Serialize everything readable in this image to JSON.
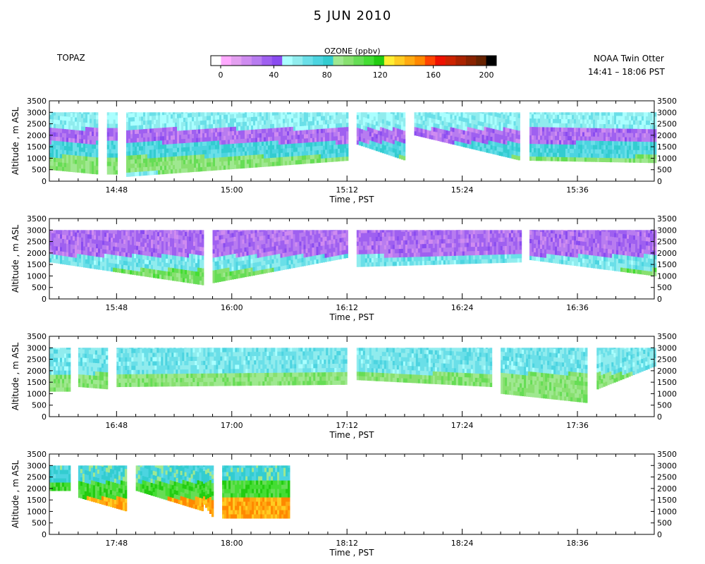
{
  "header": {
    "title": "5 JUN 2010",
    "left_label": "TOPAZ",
    "right_label_1": "NOAA Twin Otter",
    "right_label_2": "14:41 – 18:06 PST"
  },
  "colorbar": {
    "title": "OZONE (ppbv)",
    "min": 0,
    "max": 200,
    "tick_labels": [
      "0",
      "40",
      "80",
      "120",
      "160",
      "200"
    ],
    "colors": [
      "#ffffff",
      "#ffaaff",
      "#e39ff0",
      "#cf8cf0",
      "#b87cf0",
      "#9f60f0",
      "#8a4cf0",
      "#aaffff",
      "#90ecee",
      "#6adfe8",
      "#4cd4e0",
      "#33ccd0",
      "#9fe890",
      "#88e070",
      "#66dd55",
      "#44dd33",
      "#22cc11",
      "#ffee33",
      "#ffcc22",
      "#ffaa11",
      "#ff8800",
      "#ff4400",
      "#ee1100",
      "#cc2200",
      "#aa2200",
      "#882200",
      "#662200",
      "#000000"
    ]
  },
  "chart_data": [
    {
      "type": "heatmap",
      "xlabel": "Time , PST",
      "ylabel": "Altitude , m ASL",
      "xlim": [
        "14:41",
        "15:44"
      ],
      "ylim": [
        0,
        3500
      ],
      "x_ticks": [
        "14:48",
        "15:00",
        "15:12",
        "15:24",
        "15:36"
      ],
      "y_ticks": [
        "0",
        "500",
        "1000",
        "1500",
        "2000",
        "2500",
        "3000",
        "3500"
      ],
      "profile_top_m": 3000,
      "segments": [
        {
          "start": "14:41",
          "end": "14:46",
          "floor_m": [
            500,
            300
          ]
        },
        {
          "start": "14:47",
          "end": "14:48",
          "floor_m": [
            300,
            300
          ]
        },
        {
          "start": "14:49",
          "end": "15:12",
          "floor_m": [
            200,
            900
          ]
        },
        {
          "start": "15:13",
          "end": "15:18",
          "floor_m": [
            1600,
            900
          ]
        },
        {
          "start": "15:19",
          "end": "15:30",
          "floor_m": [
            2000,
            900
          ]
        },
        {
          "start": "15:31",
          "end": "15:44",
          "floor_m": [
            900,
            800
          ]
        }
      ],
      "layers": [
        {
          "from_m": 300,
          "to_m": 1000,
          "ozone_ppbv": 95
        },
        {
          "from_m": 1000,
          "to_m": 1600,
          "ozone_ppbv": 75
        },
        {
          "from_m": 1600,
          "to_m": 2200,
          "ozone_ppbv": 35
        },
        {
          "from_m": 2200,
          "to_m": 3000,
          "ozone_ppbv": 60
        }
      ]
    },
    {
      "type": "heatmap",
      "xlabel": "Time , PST",
      "ylabel": "Altitude , m ASL",
      "xlim": [
        "15:41",
        "16:44"
      ],
      "ylim": [
        0,
        3500
      ],
      "x_ticks": [
        "15:48",
        "16:00",
        "16:12",
        "16:24",
        "16:36"
      ],
      "y_ticks": [
        "0",
        "500",
        "1000",
        "1500",
        "2000",
        "2500",
        "3000",
        "3500"
      ],
      "profile_top_m": 3000,
      "segments": [
        {
          "start": "15:41",
          "end": "15:57",
          "floor_m": [
            1600,
            600
          ]
        },
        {
          "start": "15:58",
          "end": "16:12",
          "floor_m": [
            700,
            1800
          ]
        },
        {
          "start": "16:13",
          "end": "16:30",
          "floor_m": [
            1400,
            1600
          ]
        },
        {
          "start": "16:31",
          "end": "16:44",
          "floor_m": [
            1700,
            1000
          ]
        }
      ],
      "layers": [
        {
          "from_m": 500,
          "to_m": 1200,
          "ozone_ppbv": 100
        },
        {
          "from_m": 1200,
          "to_m": 1800,
          "ozone_ppbv": 65
        },
        {
          "from_m": 1800,
          "to_m": 3000,
          "ozone_ppbv": 35
        }
      ]
    },
    {
      "type": "heatmap",
      "xlabel": "Time , PST",
      "ylabel": "Altitude , m ASL",
      "xlim": [
        "16:41",
        "17:44"
      ],
      "ylim": [
        0,
        3500
      ],
      "x_ticks": [
        "16:48",
        "17:00",
        "17:12",
        "17:24",
        "17:36"
      ],
      "y_ticks": [
        "0",
        "500",
        "1000",
        "1500",
        "2000",
        "2500",
        "3000",
        "3500"
      ],
      "profile_top_m": 3000,
      "segments": [
        {
          "start": "16:41",
          "end": "16:43",
          "floor_m": [
            1100,
            1100
          ]
        },
        {
          "start": "16:44",
          "end": "16:47",
          "floor_m": [
            1300,
            1200
          ]
        },
        {
          "start": "16:48",
          "end": "17:12",
          "floor_m": [
            1300,
            1400
          ]
        },
        {
          "start": "17:13",
          "end": "17:27",
          "floor_m": [
            1600,
            1300
          ]
        },
        {
          "start": "17:28",
          "end": "17:37",
          "floor_m": [
            1000,
            600
          ]
        },
        {
          "start": "17:38",
          "end": "17:44",
          "floor_m": [
            1200,
            2200
          ]
        }
      ],
      "layers": [
        {
          "from_m": 500,
          "to_m": 1800,
          "ozone_ppbv": 95
        },
        {
          "from_m": 1800,
          "to_m": 3000,
          "ozone_ppbv": 65
        }
      ]
    },
    {
      "type": "heatmap",
      "xlabel": "Time , PST",
      "ylabel": "Altitude , m ASL",
      "xlim": [
        "17:41",
        "18:44"
      ],
      "ylim": [
        0,
        3500
      ],
      "x_ticks": [
        "17:48",
        "18:00",
        "18:12",
        "18:24",
        "18:36"
      ],
      "y_ticks": [
        "0",
        "500",
        "1000",
        "1500",
        "2000",
        "2500",
        "3000",
        "3500"
      ],
      "profile_top_m": 3000,
      "segments": [
        {
          "start": "17:41",
          "end": "17:43",
          "floor_m": [
            1900,
            1900
          ]
        },
        {
          "start": "17:44",
          "end": "17:49",
          "floor_m": [
            1600,
            1000
          ]
        },
        {
          "start": "17:50",
          "end": "17:57",
          "floor_m": [
            1900,
            1000
          ]
        },
        {
          "start": "17:57",
          "end": "17:58",
          "floor_m": [
            1300,
            700
          ]
        },
        {
          "start": "17:59",
          "end": "18:06",
          "floor_m": [
            700,
            700
          ]
        }
      ],
      "layers": [
        {
          "from_m": 700,
          "to_m": 1500,
          "ozone_ppbv": 140
        },
        {
          "from_m": 1500,
          "to_m": 2200,
          "ozone_ppbv": 110
        },
        {
          "from_m": 2200,
          "to_m": 3000,
          "ozone_ppbv": 80
        }
      ]
    }
  ]
}
